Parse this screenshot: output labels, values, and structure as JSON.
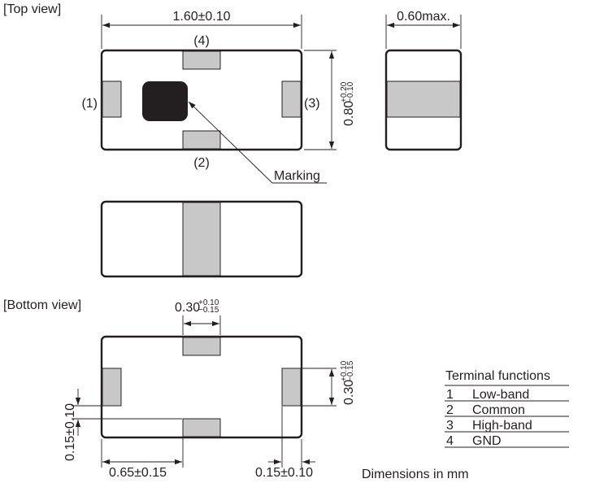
{
  "labels": {
    "top_view": "[Top view]",
    "bottom_view": "[Bottom view]",
    "pin1": "(1)",
    "pin2": "(2)",
    "pin3": "(3)",
    "pin4": "(4)",
    "marking": "Marking",
    "units_note": "Dimensions in mm"
  },
  "dimensions": {
    "length": "1.60±0.10",
    "thickness": "0.60max.",
    "width_base": "0.80",
    "width_tol_plus": "+0.20",
    "width_tol_minus": "−0.10",
    "pad_width_base": "0.30",
    "pad_width_tol_plus": "+0.10",
    "pad_width_tol_minus": "−0.15",
    "side_pad_base": "0.30",
    "side_pad_tol_plus": "+0.10",
    "side_pad_tol_minus": "−0.15",
    "pad_offset": "0.15±0.10",
    "pad_pitch": "0.65±0.15",
    "end_pad": "0.15±0.10"
  },
  "terminal_table": {
    "title": "Terminal functions",
    "rows": [
      {
        "num": "1",
        "func": "Low-band"
      },
      {
        "num": "2",
        "func": "Common"
      },
      {
        "num": "3",
        "func": "High-band"
      },
      {
        "num": "4",
        "func": "GND"
      }
    ]
  },
  "colors": {
    "line": "#231f20",
    "pad_fill": "#c8c8c8",
    "marking_fill": "#231f20"
  }
}
